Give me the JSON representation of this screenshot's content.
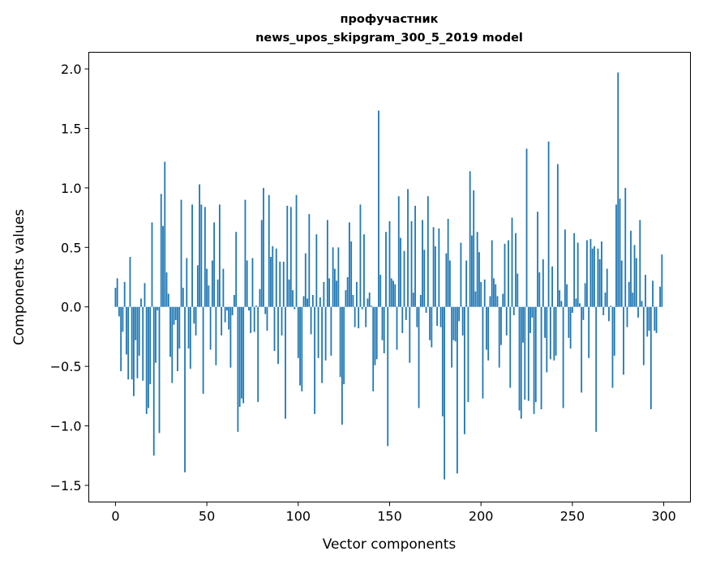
{
  "chart_data": {
    "type": "bar",
    "title": [
      "профучастник",
      "news_upos_skipgram_300_5_2019 model"
    ],
    "xlabel": "Vector components",
    "ylabel": "Components values",
    "xlim": [
      -14.6,
      314.6
    ],
    "ylim": [
      -1.64,
      2.14
    ],
    "xticks": [
      0,
      50,
      100,
      150,
      200,
      250,
      300
    ],
    "xtick_labels": [
      "0",
      "50",
      "100",
      "150",
      "200",
      "250",
      "300"
    ],
    "yticks": [
      -1.5,
      -1.0,
      -0.5,
      0.0,
      0.5,
      1.0,
      1.5,
      2.0
    ],
    "ytick_labels": [
      "−1.5",
      "−1.0",
      "−0.5",
      "0.0",
      "0.5",
      "1.0",
      "1.5",
      "2.0"
    ],
    "grid": false,
    "color": "#1f77b4",
    "values": [
      0.16,
      0.24,
      -0.08,
      -0.54,
      -0.21,
      0.21,
      -0.4,
      -0.61,
      0.42,
      -0.61,
      -0.75,
      -0.28,
      -0.6,
      -0.41,
      0.07,
      -0.62,
      0.2,
      -0.9,
      -0.85,
      -0.65,
      0.71,
      -1.25,
      -0.47,
      -0.03,
      -1.06,
      0.95,
      0.68,
      1.22,
      0.29,
      0.11,
      -0.42,
      -0.64,
      -0.15,
      -0.11,
      -0.54,
      -0.35,
      0.9,
      0.16,
      -1.39,
      0.41,
      -0.35,
      -0.52,
      0.86,
      -0.14,
      -0.24,
      0.35,
      1.03,
      0.86,
      -0.73,
      0.84,
      0.32,
      0.18,
      -0.36,
      0.39,
      0.71,
      -0.49,
      0.23,
      0.86,
      -0.24,
      0.32,
      -0.13,
      -0.03,
      -0.19,
      -0.51,
      -0.07,
      0.1,
      0.63,
      -1.05,
      -0.84,
      -0.77,
      -0.81,
      0.9,
      0.39,
      -0.03,
      -0.22,
      0.41,
      -0.21,
      0.01,
      -0.8,
      0.15,
      0.73,
      1.0,
      -0.06,
      -0.2,
      0.94,
      0.42,
      0.51,
      -0.37,
      0.49,
      -0.48,
      0.38,
      -0.24,
      0.38,
      -0.94,
      0.85,
      0.23,
      0.84,
      0.14,
      -0.02,
      0.94,
      -0.43,
      -0.66,
      -0.71,
      0.09,
      0.45,
      0.07,
      0.78,
      -0.23,
      0.1,
      -0.9,
      0.61,
      -0.43,
      0.08,
      -0.64,
      0.21,
      -0.45,
      0.73,
      0.24,
      -0.41,
      0.5,
      0.32,
      0.22,
      0.5,
      -0.59,
      -0.99,
      -0.65,
      0.14,
      0.25,
      0.71,
      0.55,
      0.1,
      -0.17,
      0.21,
      -0.18,
      0.86,
      -0.02,
      0.61,
      -0.17,
      0.07,
      0.12,
      0.01,
      -0.71,
      -0.49,
      -0.44,
      1.65,
      0.27,
      -0.28,
      -0.39,
      0.63,
      -1.17,
      0.72,
      0.24,
      0.22,
      0.19,
      -0.36,
      0.93,
      0.58,
      -0.22,
      0.47,
      -0.11,
      0.99,
      -0.47,
      0.72,
      0.12,
      0.85,
      -0.17,
      -0.85,
      0.1,
      0.73,
      0.48,
      -0.05,
      0.93,
      -0.28,
      -0.34,
      0.67,
      0.51,
      -0.16,
      0.66,
      -0.17,
      -0.92,
      -1.45,
      0.45,
      0.74,
      0.39,
      -0.51,
      -0.28,
      -0.29,
      -1.4,
      -0.12,
      0.54,
      -0.24,
      -1.07,
      0.39,
      -0.8,
      1.14,
      0.6,
      0.98,
      0.13,
      0.63,
      0.46,
      0.21,
      -0.77,
      0.23,
      -0.36,
      -0.45,
      0.09,
      0.56,
      0.24,
      0.19,
      0.09,
      -0.51,
      -0.32,
      0.11,
      0.53,
      -0.24,
      0.56,
      -0.68,
      0.75,
      -0.07,
      0.62,
      0.28,
      -0.87,
      -0.94,
      -0.3,
      -0.78,
      1.33,
      -0.79,
      -0.22,
      -0.09,
      -0.9,
      -0.8,
      0.8,
      0.29,
      -0.86,
      0.4,
      -0.26,
      -0.55,
      1.39,
      -0.44,
      0.34,
      -0.45,
      -0.41,
      1.2,
      0.14,
      0.05,
      -0.85,
      0.65,
      0.19,
      -0.26,
      -0.35,
      -0.05,
      0.62,
      0.07,
      0.54,
      0.03,
      -0.72,
      -0.11,
      0.2,
      0.56,
      -0.43,
      0.57,
      0.49,
      0.51,
      -1.05,
      0.49,
      0.4,
      0.55,
      -0.07,
      0.12,
      0.32,
      -0.12,
      0.01,
      -0.68,
      -0.41,
      0.86,
      1.97,
      0.91,
      0.39,
      -0.57,
      1.0,
      -0.17,
      0.21,
      0.64,
      0.12,
      0.52,
      0.41,
      -0.09,
      0.73,
      0.05,
      -0.49,
      0.27,
      -0.25,
      -0.2,
      -0.86,
      0.22,
      -0.2,
      -0.22,
      0.0,
      0.17,
      0.44
    ]
  }
}
